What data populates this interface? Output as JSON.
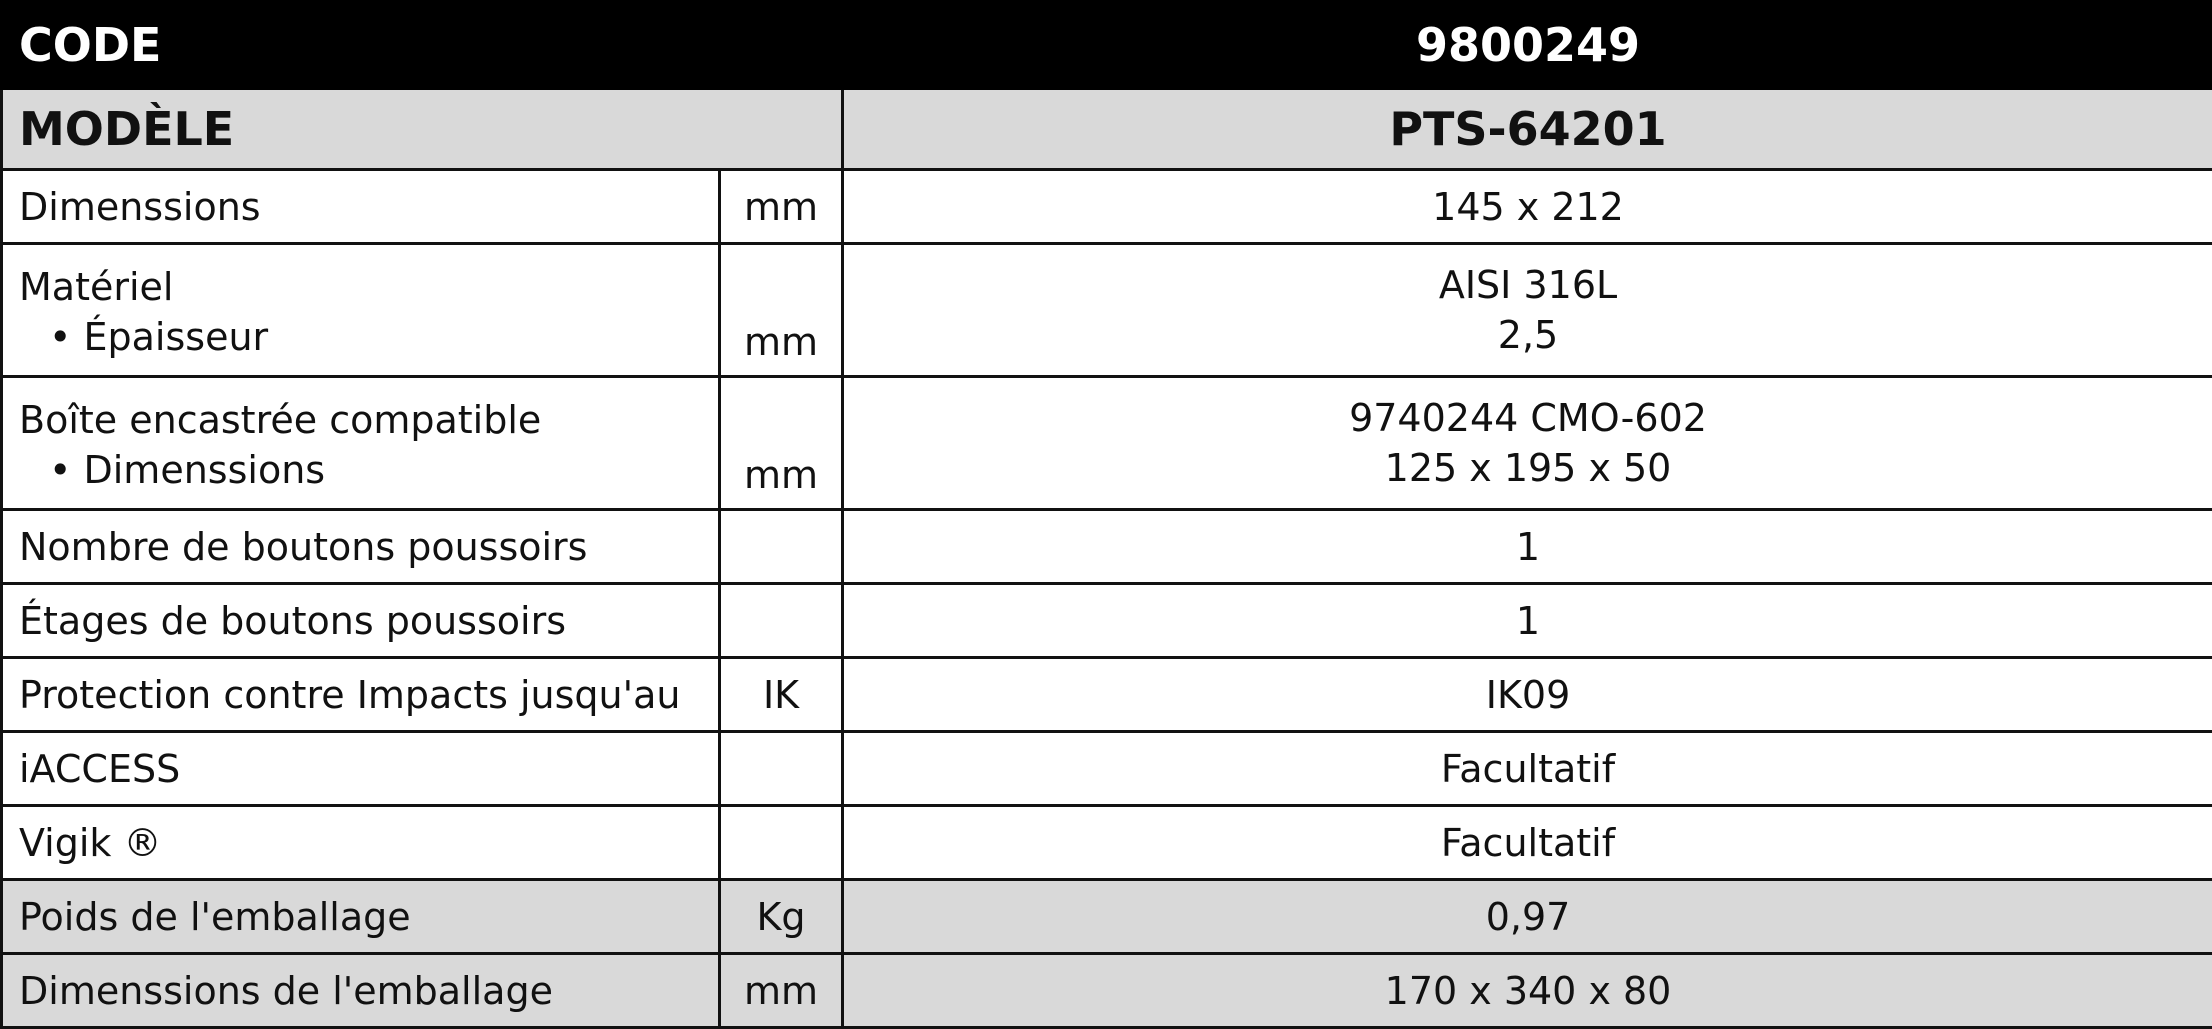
{
  "header": {
    "code_label": "CODE",
    "code_value": "9800249",
    "model_label": "MODÈLE",
    "model_value": "PTS-64201"
  },
  "rows": [
    {
      "label": "Dimenssions",
      "unit": "mm",
      "value": "145 x 212"
    },
    {
      "label": "Matériel",
      "sub_label": "• Épaisseur",
      "unit": "mm",
      "value": "AISI 316L",
      "sub_value": "2,5"
    },
    {
      "label": "Boîte encastrée compatible",
      "sub_label": "• Dimenssions",
      "unit": "mm",
      "value": "9740244 CMO-602",
      "sub_value": "125 x 195 x 50"
    },
    {
      "label": "Nombre de boutons poussoirs",
      "unit": "",
      "value": "1"
    },
    {
      "label": "Étages de boutons poussoirs",
      "unit": "",
      "value": "1"
    },
    {
      "label": "Protection contre Impacts jusqu'au",
      "unit": "IK",
      "value": "IK09"
    },
    {
      "label": "iACCESS",
      "unit": "",
      "value": "Facultatif"
    },
    {
      "label": "Vigik ®",
      "unit": "",
      "value": "Facultatif"
    },
    {
      "label": "Poids de l'emballage",
      "unit": "Kg",
      "value": "0,97"
    },
    {
      "label": "Dimenssions de l'emballage",
      "unit": "mm",
      "value": "170 x 340 x 80"
    }
  ],
  "colors": {
    "header_bg": "#000000",
    "gray_row_bg": "#d9d9d9"
  }
}
